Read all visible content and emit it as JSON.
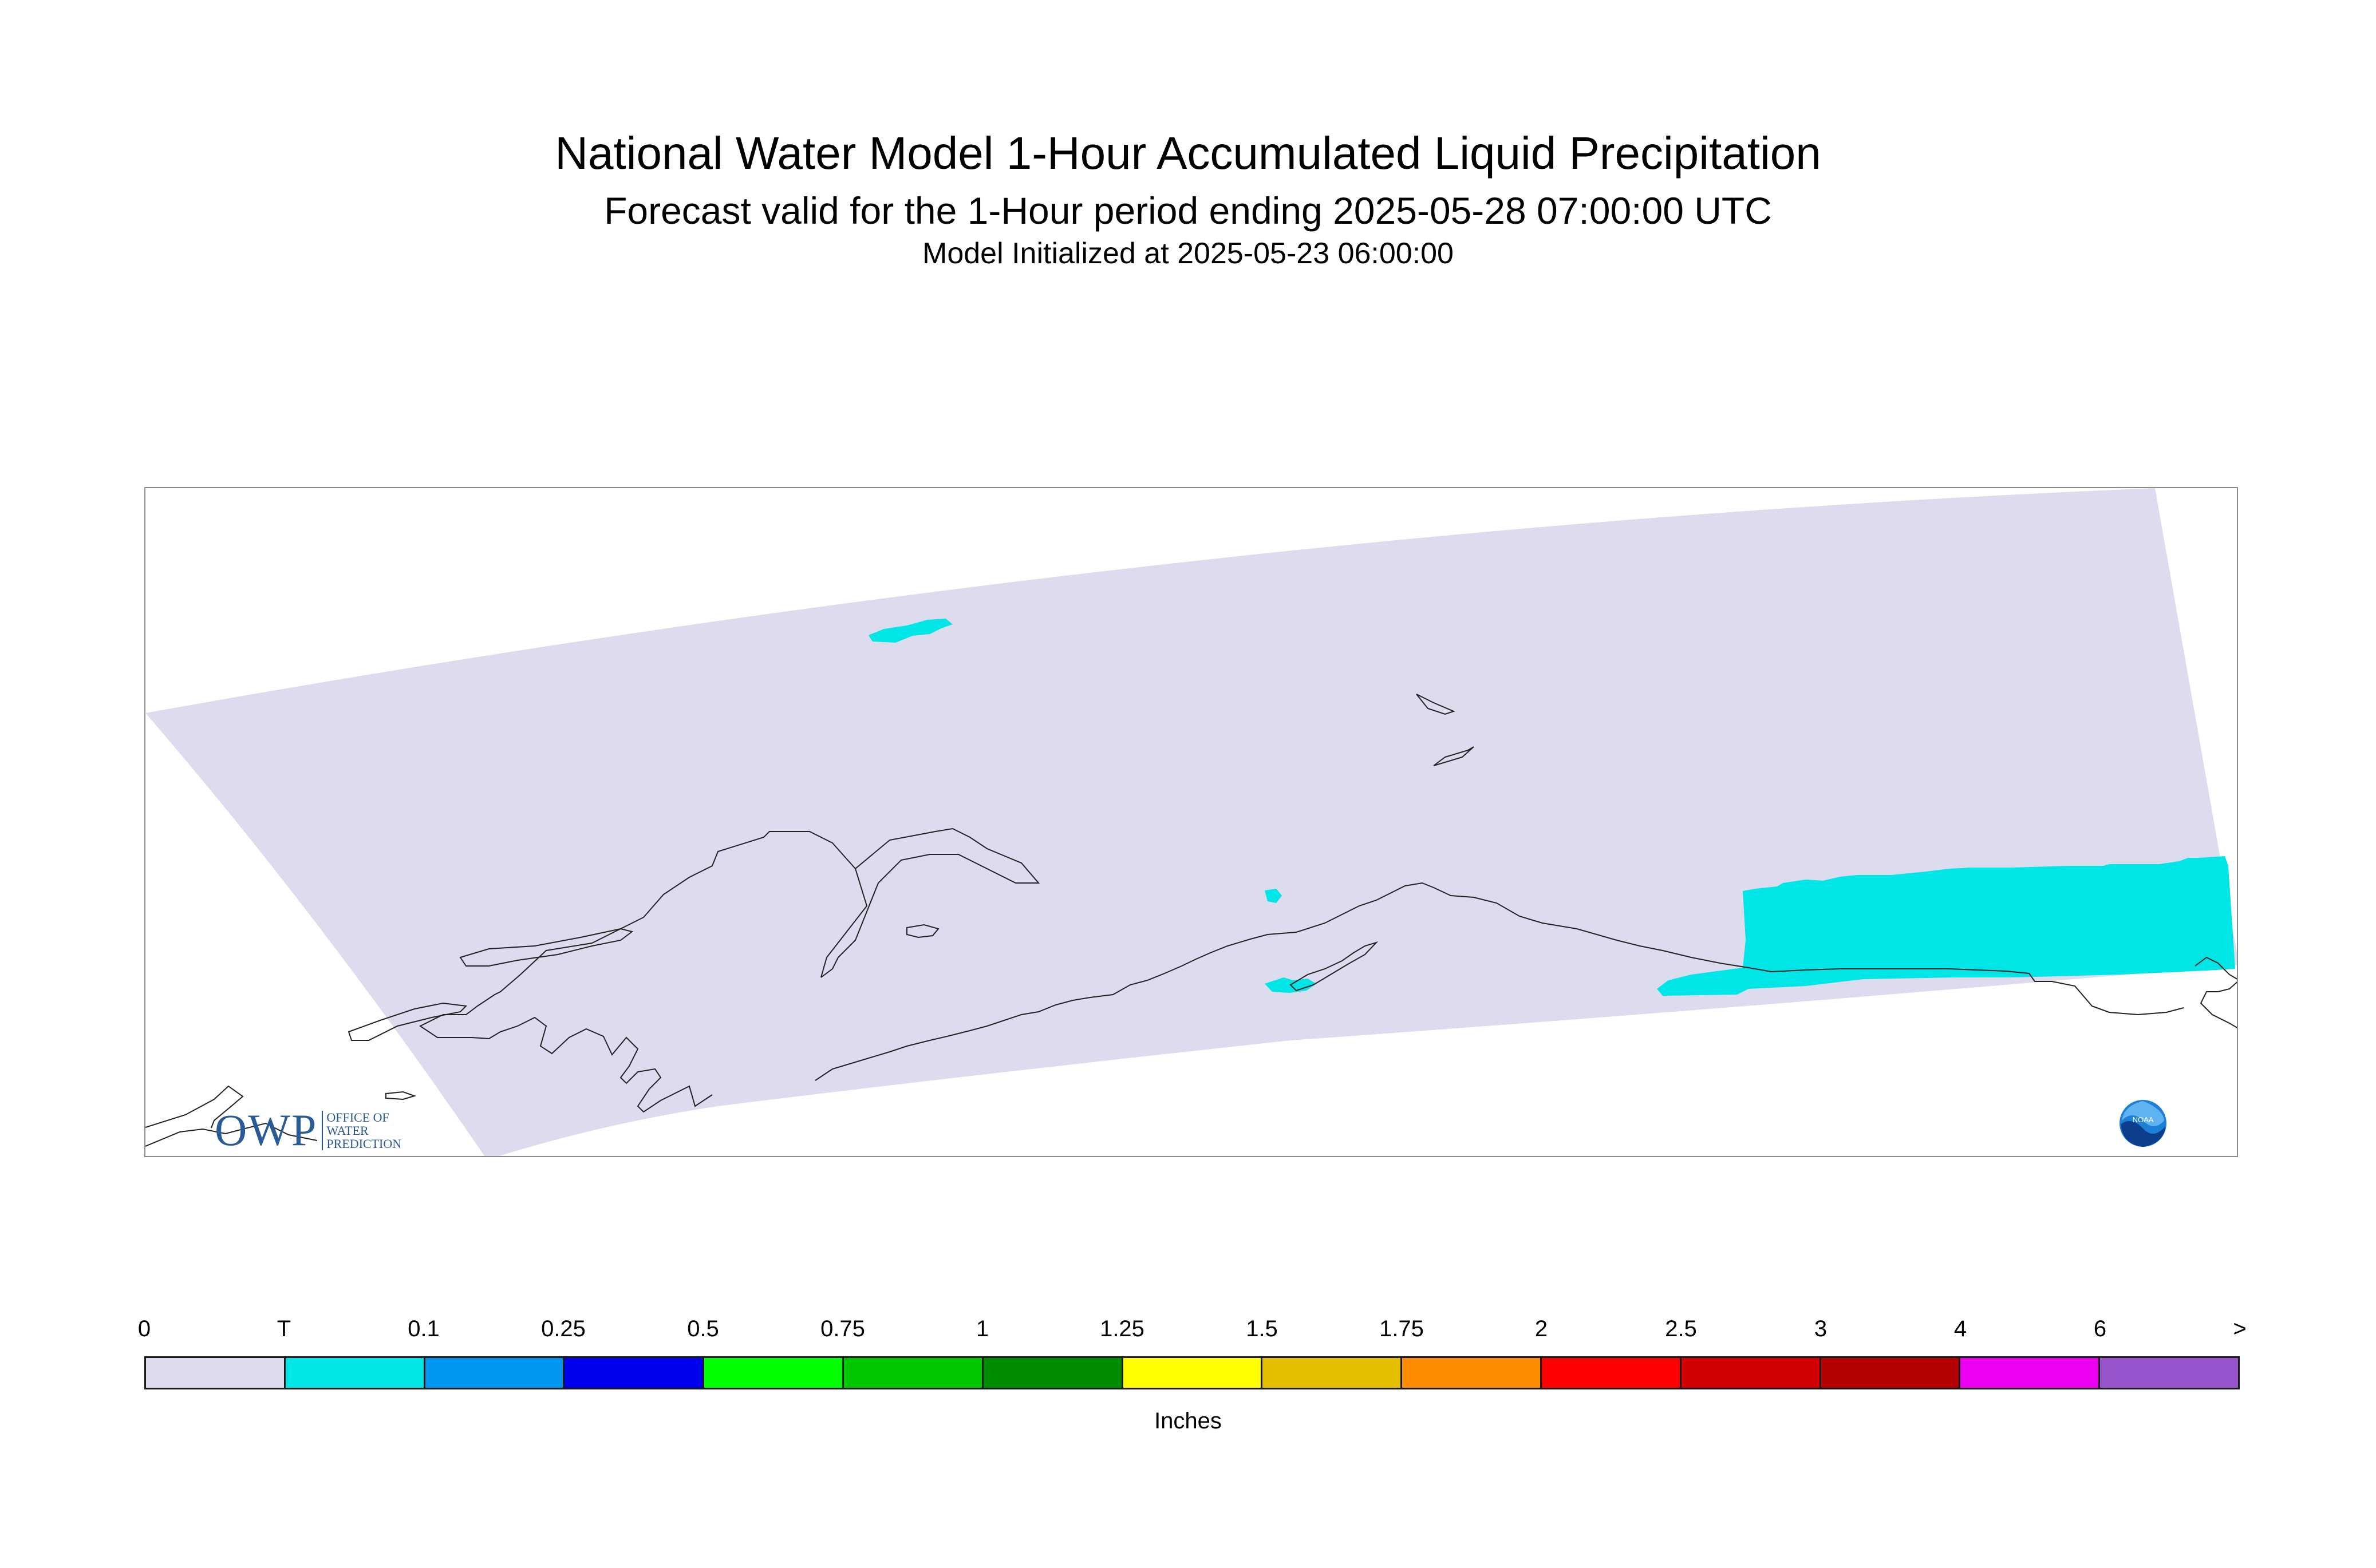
{
  "title": "National Water Model 1-Hour Accumulated Liquid Precipitation",
  "subtitle": "Forecast valid for the 1-Hour period ending 2025-05-28 07:00:00 UTC",
  "init_line": "Model Initialized at 2025-05-23 06:00:00",
  "legend": {
    "unit": "Inches",
    "ticks": [
      "0",
      "T",
      "0.1",
      "0.25",
      "0.5",
      "0.75",
      "1",
      "1.25",
      "1.5",
      "1.75",
      "2",
      "2.5",
      "3",
      "4",
      "6",
      ">"
    ],
    "colors": [
      "#dcdcee",
      "#00e5e5",
      "#0097f0",
      "#0000f0",
      "#00ff00",
      "#00c800",
      "#008c00",
      "#ffff00",
      "#e6be00",
      "#ff8c00",
      "#ff0000",
      "#d20000",
      "#b40000",
      "#f000f0",
      "#9955cc"
    ]
  },
  "map": {
    "domain_fill": "#dcdcee",
    "precip_color": "#00e5e5",
    "coastline_color": "#222222"
  },
  "logos": {
    "owp_big": "OWP",
    "owp_line1": "OFFICE OF",
    "owp_line2": "WATER",
    "owp_line3": "PREDICTION",
    "noaa": "NOAA"
  }
}
